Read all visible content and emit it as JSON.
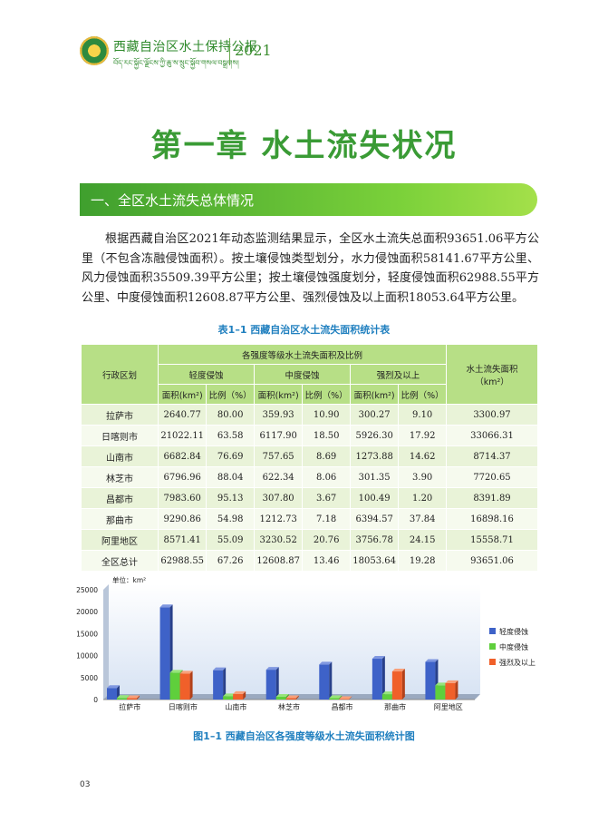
{
  "header": {
    "title": "西藏自治区水土保持公报",
    "subtitle_tibetan": "བོད་རང་སྐྱོང་ལྗོངས་ཀྱི་ཆུ་ས་སྲུང་སྐྱོབ་གསལ་བསྒྲགས།",
    "year": "2021"
  },
  "chapter_title": "第一章  水土流失状况",
  "section_title": "一、全区水土流失总体情况",
  "paragraph": "根据西藏自治区2021年动态监测结果显示，全区水土流失总面积93651.06平方公里（不包含冻融侵蚀面积）。按土壤侵蚀类型划分，水力侵蚀面积58141.67平方公里、风力侵蚀面积35509.39平方公里；按土壤侵蚀强度划分，轻度侵蚀面积62988.55平方公里、中度侵蚀面积12608.87平方公里、强烈侵蚀及以上面积18053.64平方公里。",
  "table": {
    "caption": "表1–1  西藏自治区水土流失面积统计表",
    "h_region": "行政区划",
    "h_group": "各强度等级水土流失面积及比例",
    "h_total": "水土流失面积（km²）",
    "h_levels": [
      "轻度侵蚀",
      "中度侵蚀",
      "强烈及以上"
    ],
    "h_area": "面积(km²)",
    "h_ratio": "比例（%）",
    "rows": [
      [
        "拉萨市",
        "2640.77",
        "80.00",
        "359.93",
        "10.90",
        "300.27",
        "9.10",
        "3300.97"
      ],
      [
        "日喀则市",
        "21022.11",
        "63.58",
        "6117.90",
        "18.50",
        "5926.30",
        "17.92",
        "33066.31"
      ],
      [
        "山南市",
        "6682.84",
        "76.69",
        "757.65",
        "8.69",
        "1273.88",
        "14.62",
        "8714.37"
      ],
      [
        "林芝市",
        "6796.96",
        "88.04",
        "622.34",
        "8.06",
        "301.35",
        "3.90",
        "7720.65"
      ],
      [
        "昌都市",
        "7983.60",
        "95.13",
        "307.80",
        "3.67",
        "100.49",
        "1.20",
        "8391.89"
      ],
      [
        "那曲市",
        "9290.86",
        "54.98",
        "1212.73",
        "7.18",
        "6394.57",
        "37.84",
        "16898.16"
      ],
      [
        "阿里地区",
        "8571.41",
        "55.09",
        "3230.52",
        "20.76",
        "3756.78",
        "24.15",
        "15558.71"
      ],
      [
        "全区总计",
        "62988.55",
        "67.26",
        "12608.87",
        "13.46",
        "18053.64",
        "19.28",
        "93651.06"
      ]
    ]
  },
  "chart_data": {
    "type": "bar",
    "unit_label": "单位：km²",
    "categories": [
      "拉萨市",
      "日喀则市",
      "山南市",
      "林芝市",
      "昌都市",
      "那曲市",
      "阿里地区"
    ],
    "series": [
      {
        "name": "轻度侵蚀",
        "values": [
          2640.77,
          21022.11,
          6682.84,
          6796.96,
          7983.6,
          9290.86,
          8571.41
        ],
        "color": "#3e62c8"
      },
      {
        "name": "中度侵蚀",
        "values": [
          359.93,
          6117.9,
          757.65,
          622.34,
          307.8,
          1212.73,
          3230.52
        ],
        "color": "#5fcf3c"
      },
      {
        "name": "强烈及以上",
        "values": [
          300.27,
          5926.3,
          1273.88,
          301.35,
          100.49,
          6394.57,
          3756.78
        ],
        "color": "#f0602a"
      }
    ],
    "ylim": [
      0,
      25000
    ],
    "yticks": [
      "0",
      "5000",
      "10000",
      "15000",
      "20000",
      "25000"
    ],
    "legend_position": "right",
    "grid": false
  },
  "figure_caption": "图1–1  西藏自治区各强度等级水土流失面积统计图",
  "page_number": "03"
}
